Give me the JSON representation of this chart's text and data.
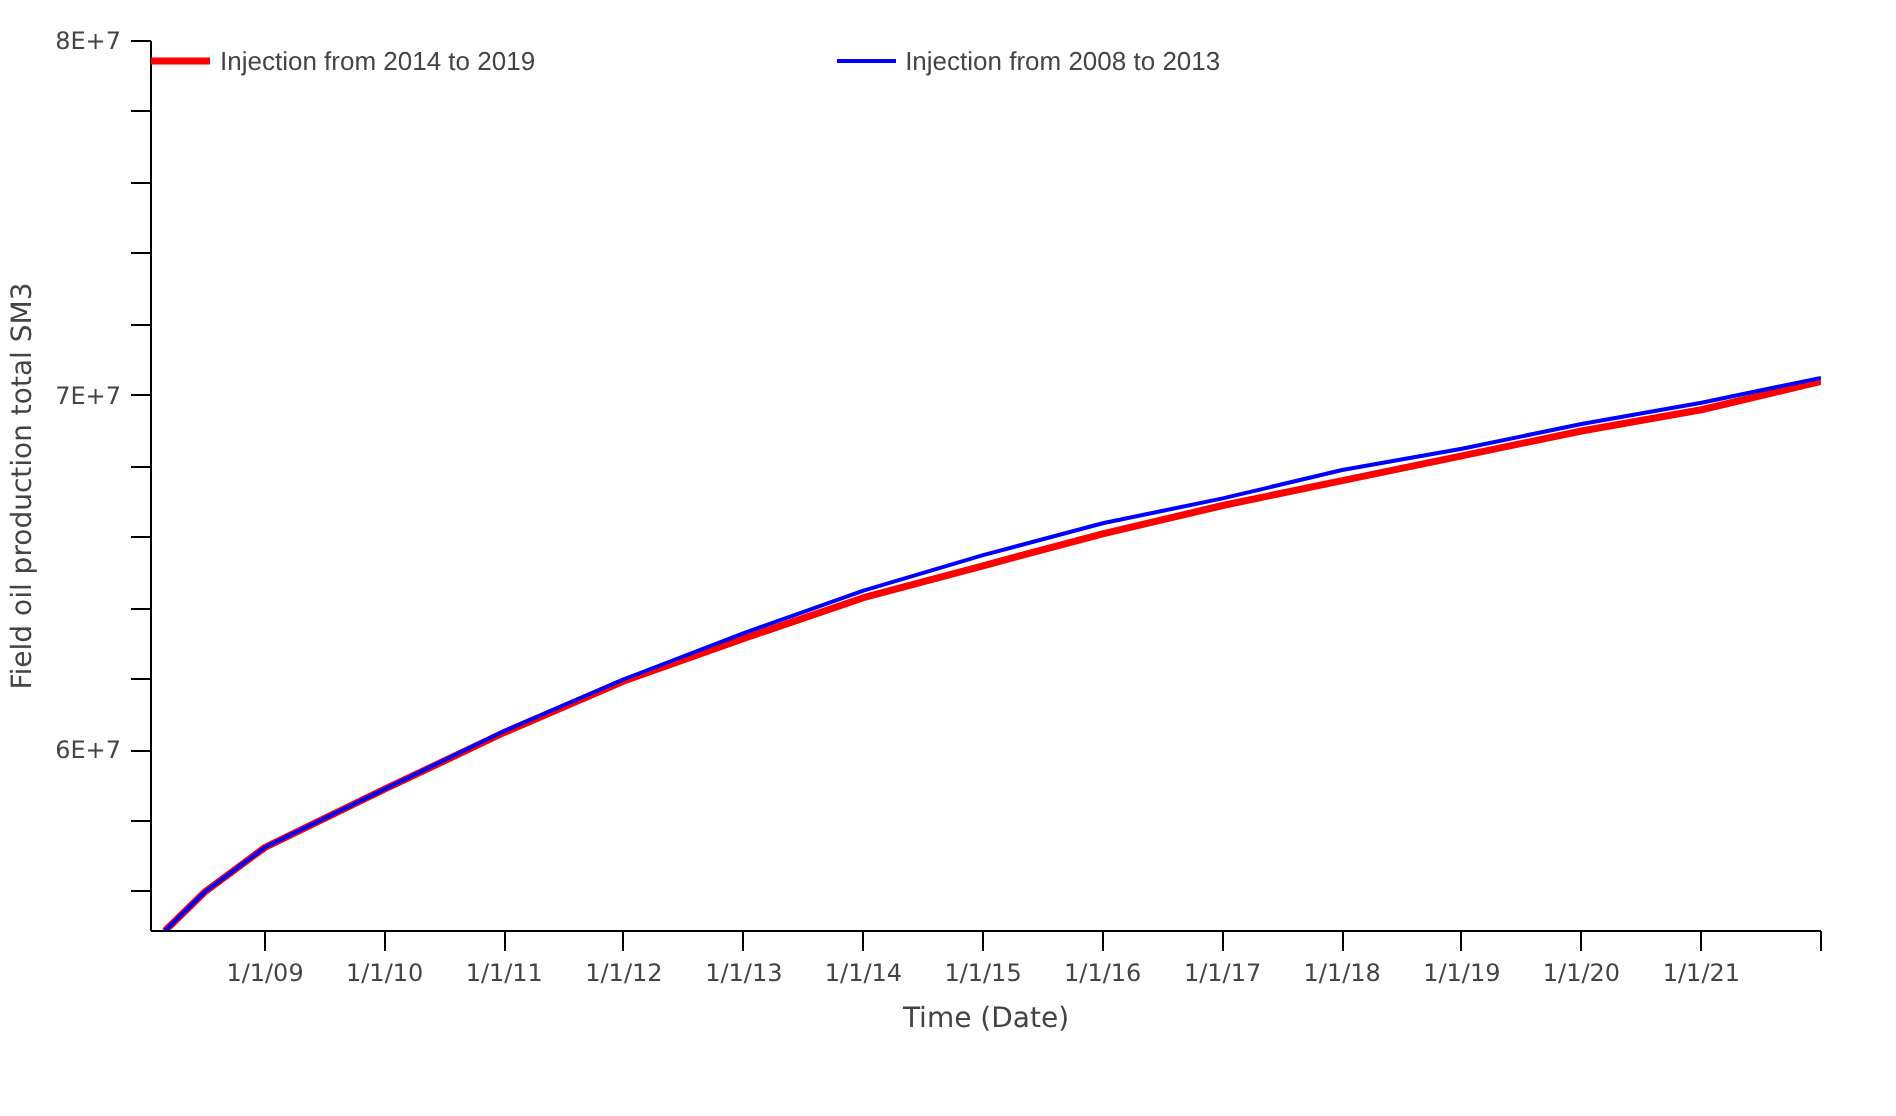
{
  "chart_data": {
    "type": "line",
    "xlabel": "Time (Date)",
    "ylabel": "Field oil production total SM3",
    "legend": "top",
    "grid": false,
    "marker": "none",
    "line_style": "solid",
    "xlim": [
      "2008-01-19",
      "2022-01-01"
    ],
    "xticks": [
      {
        "value": "2009-01-01",
        "label": "1/1/09"
      },
      {
        "value": "2010-01-01",
        "label": "1/1/10"
      },
      {
        "value": "2011-01-01",
        "label": "1/1/11"
      },
      {
        "value": "2012-01-01",
        "label": "1/1/12"
      },
      {
        "value": "2013-01-01",
        "label": "1/1/13"
      },
      {
        "value": "2014-01-01",
        "label": "1/1/14"
      },
      {
        "value": "2015-01-01",
        "label": "1/1/15"
      },
      {
        "value": "2016-01-01",
        "label": "1/1/16"
      },
      {
        "value": "2017-01-01",
        "label": "1/1/17"
      },
      {
        "value": "2018-01-01",
        "label": "1/1/18"
      },
      {
        "value": "2019-01-01",
        "label": "1/1/19"
      },
      {
        "value": "2020-01-01",
        "label": "1/1/20"
      },
      {
        "value": "2021-01-01",
        "label": "1/1/21"
      },
      {
        "value": "2022-01-01",
        "label": null
      }
    ],
    "ylim": [
      54900000,
      80000000
    ],
    "yticks": [
      {
        "value": 56000000,
        "label": null
      },
      {
        "value": 58000000,
        "label": null
      },
      {
        "value": 60000000,
        "label": "6E+7"
      },
      {
        "value": 62000000,
        "label": null
      },
      {
        "value": 64000000,
        "label": null
      },
      {
        "value": 66000000,
        "label": null
      },
      {
        "value": 68000000,
        "label": null
      },
      {
        "value": 70000000,
        "label": "7E+7"
      },
      {
        "value": 72000000,
        "label": null
      },
      {
        "value": 74000000,
        "label": null
      },
      {
        "value": 76000000,
        "label": null
      },
      {
        "value": 78000000,
        "label": null
      },
      {
        "value": 80000000,
        "label": "8E+7"
      }
    ],
    "x": [
      "2008-03-01",
      "2008-07-01",
      "2009-01-01",
      "2010-01-01",
      "2011-01-01",
      "2012-01-01",
      "2013-01-01",
      "2014-01-01",
      "2015-01-01",
      "2016-01-01",
      "2017-01-01",
      "2018-01-01",
      "2019-01-01",
      "2020-01-01",
      "2021-01-01",
      "2022-01-01"
    ],
    "series": [
      {
        "name": "Injection from 2014 to 2019",
        "color": "#ff0000",
        "values": [
          54900000,
          56000000,
          57260000,
          58900000,
          60500000,
          61950000,
          63150000,
          64300000,
          65200000,
          66100000,
          66900000,
          67600000,
          68300000,
          69000000,
          69600000,
          70400000
        ]
      },
      {
        "name": "Injection from 2008 to 2013",
        "color": "#0000ff",
        "values": [
          54900000,
          56000000,
          57260000,
          58900000,
          60540000,
          62000000,
          63300000,
          64500000,
          65500000,
          66400000,
          67100000,
          67900000,
          68500000,
          69200000,
          69800000,
          70500000
        ]
      }
    ]
  }
}
